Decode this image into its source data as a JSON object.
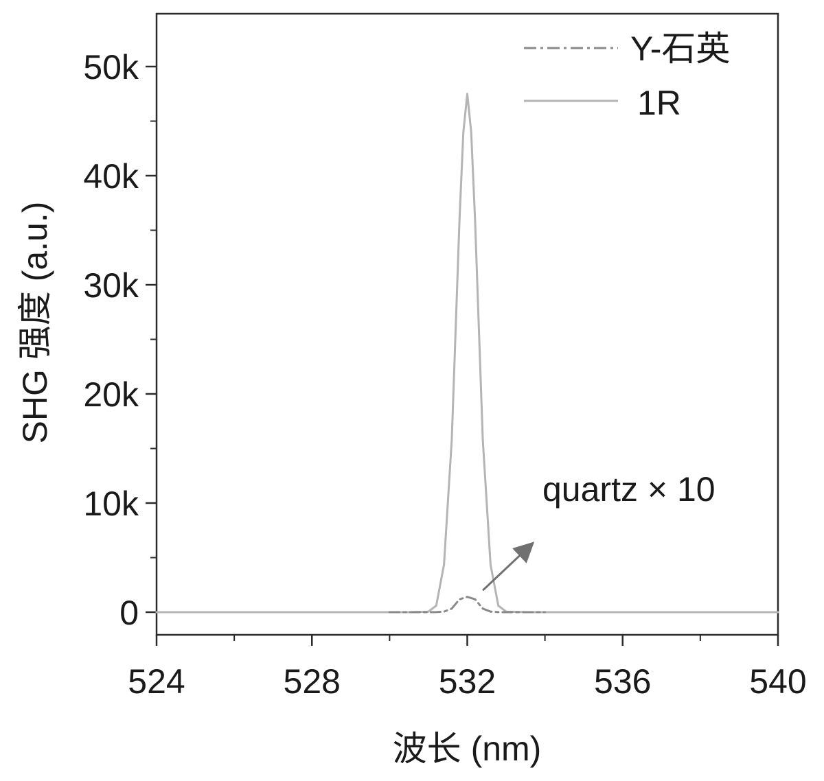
{
  "chart_data": {
    "type": "line",
    "title": "",
    "xlabel": "波长 (nm)",
    "ylabel": "SHG 强度 (a.u.)",
    "xlim": [
      524,
      540
    ],
    "ylim": [
      -2000,
      55000
    ],
    "x_ticks": [
      524,
      528,
      532,
      536,
      540
    ],
    "x_tick_labels": [
      "524",
      "528",
      "532",
      "536",
      "540"
    ],
    "x_minor_ticks": [
      526,
      530,
      534,
      538
    ],
    "y_ticks": [
      0,
      10000,
      20000,
      30000,
      40000,
      50000
    ],
    "y_tick_labels": [
      "0",
      "10k",
      "20k",
      "30k",
      "40k",
      "50k"
    ],
    "y_minor_ticks": [
      5000,
      15000,
      25000,
      35000,
      45000
    ],
    "grid": false,
    "legend_position": "top-right",
    "series": [
      {
        "name": "Y-石英",
        "style": "dash-dot",
        "color": "#8a8a8a",
        "x": [
          530.0,
          530.5,
          531.0,
          531.2,
          531.4,
          531.6,
          531.8,
          532.0,
          532.2,
          532.4,
          532.6,
          532.8,
          533.0,
          533.5,
          534.0
        ],
        "y": [
          0,
          0,
          0,
          6,
          50,
          330,
          1180,
          1400,
          1180,
          330,
          50,
          6,
          0,
          0,
          0
        ]
      },
      {
        "name": "1R",
        "style": "solid",
        "color": "#b4b4b4",
        "x": [
          524.0,
          528.0,
          530.5,
          531.0,
          531.2,
          531.4,
          531.6,
          531.7,
          531.8,
          531.9,
          532.0,
          532.1,
          532.2,
          532.3,
          532.4,
          532.6,
          532.8,
          533.0,
          533.5,
          536.0,
          540.0
        ],
        "y": [
          0,
          0,
          0,
          50,
          600,
          4350,
          15800,
          25800,
          36000,
          44000,
          47500,
          44000,
          36000,
          25800,
          15800,
          4350,
          600,
          50,
          0,
          0,
          0
        ]
      }
    ],
    "annotations": [
      {
        "text": "quartz × 10",
        "arrow_from": [
          532.4,
          2000
        ],
        "arrow_to": [
          533.65,
          6200
        ]
      }
    ]
  }
}
